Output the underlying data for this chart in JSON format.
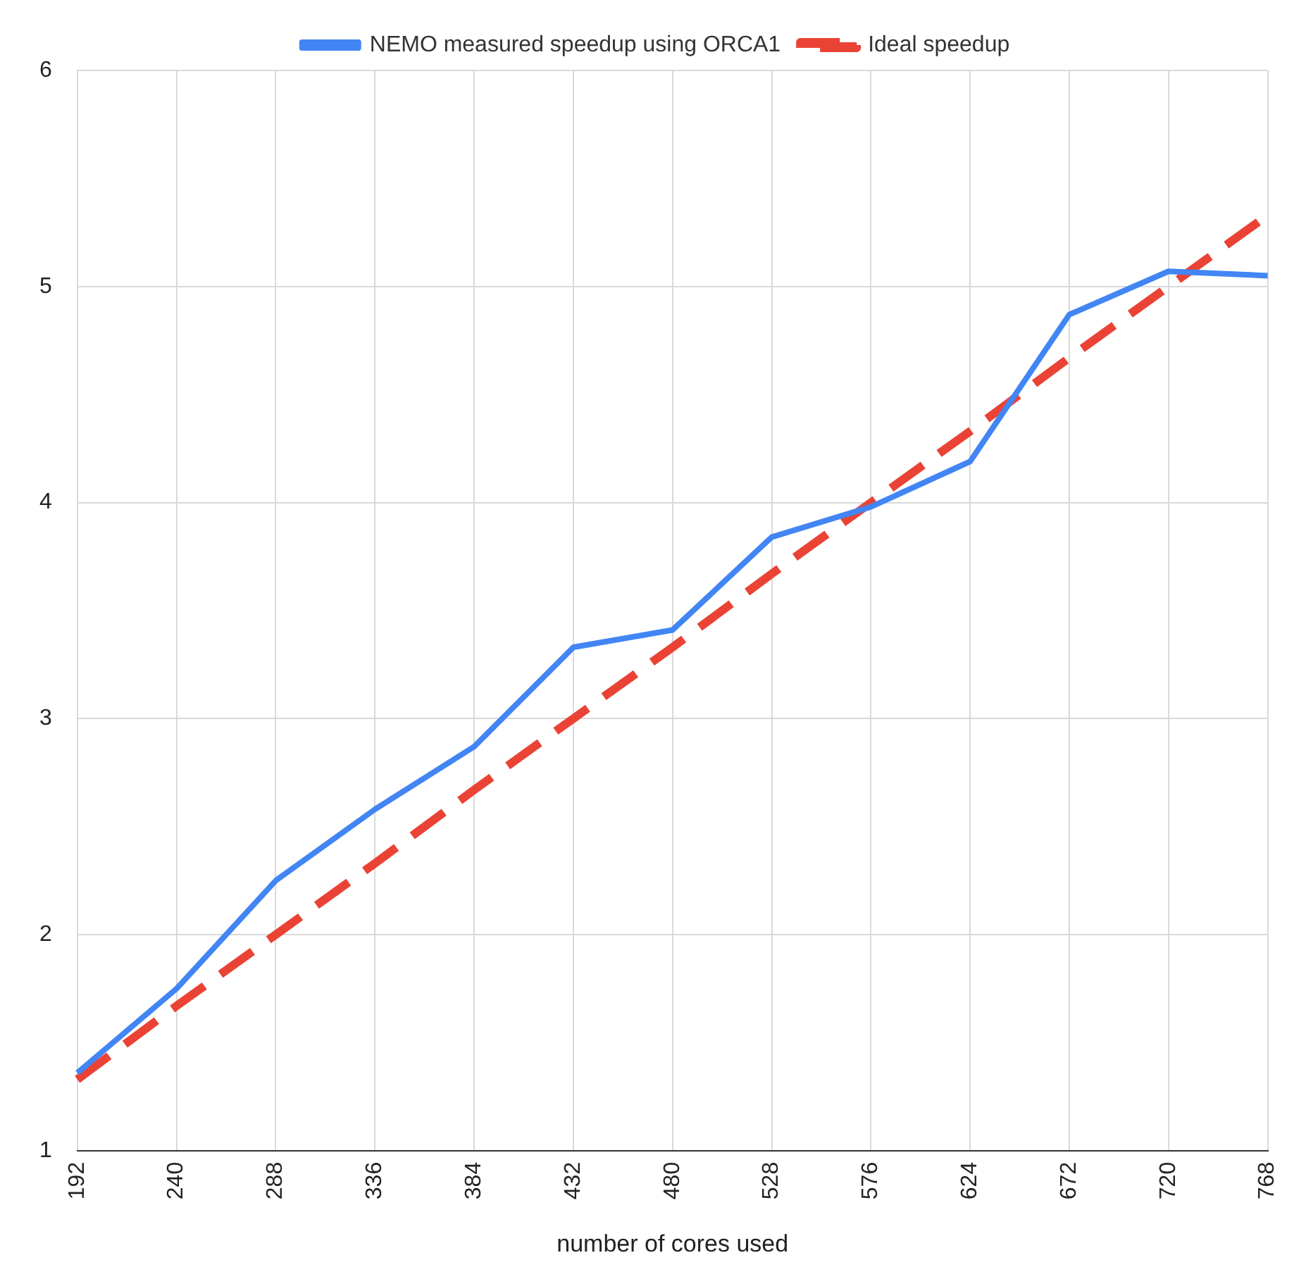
{
  "chart_data": {
    "type": "line",
    "xlabel": "number of cores used",
    "categories": [
      "192",
      "240",
      "288",
      "336",
      "384",
      "432",
      "480",
      "528",
      "576",
      "624",
      "672",
      "720",
      "768"
    ],
    "series": [
      {
        "name": "NEMO measured speedup using ORCA1",
        "color": "#4285f4",
        "line_style": "solid",
        "values": [
          1.36,
          1.75,
          2.25,
          2.58,
          2.87,
          3.33,
          3.41,
          3.84,
          3.98,
          4.19,
          4.87,
          5.07,
          5.05
        ]
      },
      {
        "name": "Ideal speedup",
        "color": "#ea4335",
        "line_style": "dashed",
        "values": [
          1.33,
          1.67,
          2,
          2.33,
          2.67,
          3,
          3.33,
          3.67,
          4,
          4.33,
          4.67,
          5,
          5.33
        ]
      }
    ],
    "ylim": [
      1,
      6
    ],
    "yticks": [
      1,
      2,
      3,
      4,
      5,
      6
    ],
    "grid": true,
    "legend": "top",
    "marker": "none"
  }
}
